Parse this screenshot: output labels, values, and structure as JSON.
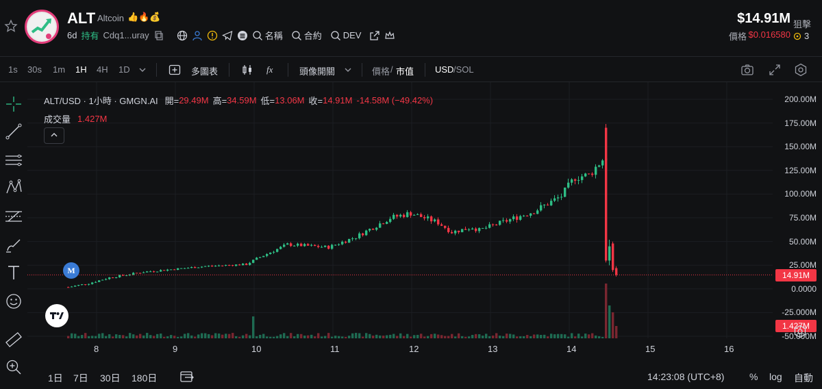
{
  "header": {
    "title": "ALT",
    "subtitle": "Altcoin",
    "age": "6d",
    "holders_label": "持有",
    "address": "Cdq1...uray",
    "links": [
      "名稱",
      "合約",
      "DEV"
    ],
    "price": "$14.91M",
    "price_label": "價格",
    "price_value": "$0.016580",
    "side_label": "狙擊",
    "side_count": "3"
  },
  "toolbar": {
    "timeframes": [
      "1s",
      "30s",
      "1m",
      "1H",
      "4H",
      "1D"
    ],
    "active_timeframe": "1H",
    "multi_chart": "多圖表",
    "fx": "fx",
    "head_label": "頭像開關",
    "price_toggle": "價格",
    "slash": "/",
    "mcap_toggle": "市值",
    "currency_usd": "USD",
    "currency_sol": "/SOL"
  },
  "legend": {
    "symbol": "ALT/USD · 1小時 · GMGN.AI",
    "open_label": "開=",
    "open": "29.49M",
    "high_label": "高=",
    "high": "34.59M",
    "low_label": "低=",
    "low": "13.06M",
    "close_label": "收=",
    "close": "14.91M",
    "change": "-14.58M (−49.42%)",
    "volume_label": "成交量",
    "volume": "1.427M",
    "m_badge": "M"
  },
  "y_axis": [
    "200.00M",
    "175.00M",
    "150.00M",
    "125.00M",
    "100.00M",
    "75.00M",
    "50.00M",
    "25.00M",
    "0.0000",
    "-25.000M",
    "-50.000M"
  ],
  "price_tag": "14.91M",
  "volume_tag": "1.427M",
  "x_axis": [
    "8",
    "9",
    "10",
    "11",
    "12",
    "13",
    "14",
    "15",
    "16"
  ],
  "bottom": {
    "ranges": [
      "1日",
      "7日",
      "30日",
      "180日"
    ],
    "time": "14:23:08 (UTC+8)",
    "percent": "%",
    "log": "log",
    "auto": "自動"
  },
  "colors": {
    "up": "#2ebd85",
    "down": "#f23645",
    "bg": "#111214"
  }
}
